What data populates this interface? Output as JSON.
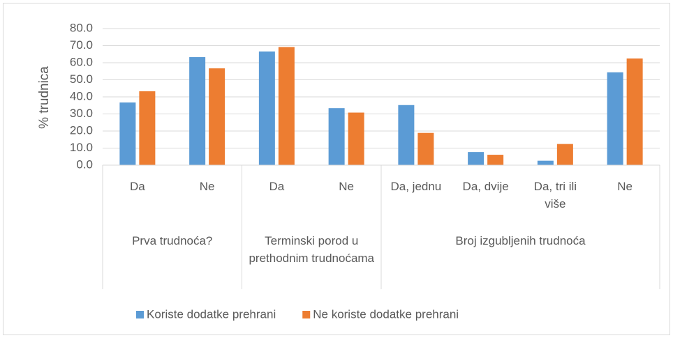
{
  "chart_data": {
    "type": "bar",
    "y_label": "% trudnica",
    "groups": [
      {
        "label": "Prva trudnoća?",
        "categories": [
          "Da",
          "Ne"
        ]
      },
      {
        "label": "Terminski porod u prethodnim trudnoćama",
        "categories": [
          "Da",
          "Ne"
        ]
      },
      {
        "label": "Broj izgubljenih trudnoća",
        "categories": [
          "Da, jednu",
          "Da, dvije",
          "Da, tri ili više",
          "Ne"
        ]
      }
    ],
    "series": [
      {
        "name": "Koriste dodatke prehrani",
        "color": "#5b9bd5",
        "values": [
          36.7,
          63.3,
          66.6,
          33.4,
          35.2,
          7.7,
          2.6,
          54.4
        ]
      },
      {
        "name": "Ne koriste dodatke prehrani",
        "color": "#ed7d31",
        "values": [
          43.3,
          56.7,
          69.2,
          30.8,
          18.9,
          6.1,
          12.4,
          62.5
        ]
      }
    ],
    "ylim": [
      0,
      80
    ],
    "yticks": [
      {
        "value": 0,
        "label": "0.0"
      },
      {
        "value": 10,
        "label": "10.0"
      },
      {
        "value": 20,
        "label": "20.0"
      },
      {
        "value": 30,
        "label": "30.0"
      },
      {
        "value": 40,
        "label": "40.0"
      },
      {
        "value": 50,
        "label": "50.0"
      },
      {
        "value": 60,
        "label": "60.0"
      },
      {
        "value": 70,
        "label": "70.0"
      },
      {
        "value": 80,
        "label": "80.0"
      }
    ],
    "grid": true,
    "legend": "bottom"
  }
}
